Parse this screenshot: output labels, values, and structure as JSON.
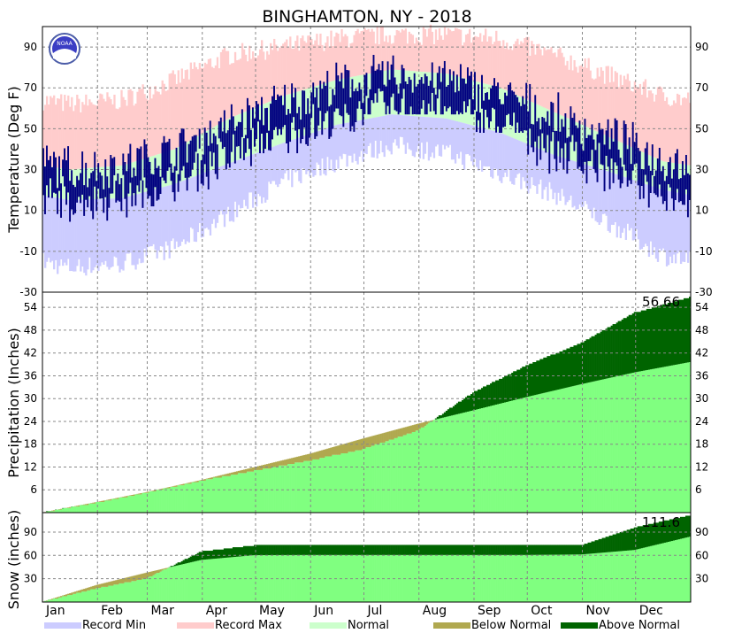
{
  "chart_data": {
    "type": "climate-summary",
    "title": "BINGHAMTON, NY - 2018",
    "months": [
      "Jan",
      "Feb",
      "Mar",
      "Apr",
      "May",
      "Jun",
      "Jul",
      "Aug",
      "Sep",
      "Oct",
      "Nov",
      "Dec"
    ],
    "logo_text": "NOAA",
    "temperature": {
      "ylabel": "Temperature (Deg F)",
      "ylim": [
        -30,
        100
      ],
      "ticks": [
        -30,
        -10,
        10,
        30,
        50,
        70,
        90
      ],
      "normal_high_by_month": [
        30,
        32,
        40,
        55,
        66,
        74,
        79,
        77,
        70,
        58,
        46,
        34
      ],
      "normal_low_by_month": [
        15,
        16,
        23,
        33,
        43,
        52,
        57,
        55,
        48,
        37,
        29,
        20
      ],
      "record_max_by_month": [
        62,
        64,
        74,
        86,
        90,
        94,
        96,
        96,
        94,
        86,
        76,
        66
      ],
      "record_min_by_month": [
        -18,
        -16,
        -8,
        8,
        24,
        34,
        42,
        38,
        28,
        18,
        4,
        -12
      ],
      "observed_monthly_range": [
        {
          "month": "Jan",
          "low": -7,
          "high": 55
        },
        {
          "month": "Feb",
          "low": 5,
          "high": 67
        },
        {
          "month": "Mar",
          "low": 12,
          "high": 50
        },
        {
          "month": "Apr",
          "low": 16,
          "high": 75
        },
        {
          "month": "May",
          "low": 38,
          "high": 88
        },
        {
          "month": "Jun",
          "low": 45,
          "high": 88
        },
        {
          "month": "Jul",
          "low": 57,
          "high": 91
        },
        {
          "month": "Aug",
          "low": 57,
          "high": 87
        },
        {
          "month": "Sep",
          "low": 48,
          "high": 88
        },
        {
          "month": "Oct",
          "low": 28,
          "high": 78
        },
        {
          "month": "Nov",
          "low": 2,
          "high": 60
        },
        {
          "month": "Dec",
          "low": 5,
          "high": 55
        }
      ]
    },
    "precipitation": {
      "ylabel": "Precipitation (Inches)",
      "ylim": [
        0,
        58
      ],
      "ticks": [
        6,
        12,
        18,
        24,
        30,
        36,
        42,
        48,
        54
      ],
      "cumulative_observed_by_month_end": [
        2.6,
        5.2,
        8.4,
        11.0,
        13.7,
        16.7,
        21.6,
        31.6,
        38.7,
        44.7,
        52.6,
        56.66
      ],
      "cumulative_normal_by_month_end": [
        2.8,
        5.4,
        8.6,
        12.0,
        15.5,
        19.5,
        23.4,
        26.9,
        30.4,
        33.8,
        36.9,
        39.6
      ],
      "total_label": "56.66"
    },
    "snow": {
      "ylabel": "Snow (inches)",
      "ylim": [
        0,
        115
      ],
      "ticks": [
        30,
        60,
        90
      ],
      "cumulative_observed_by_month_end": [
        17.5,
        30.2,
        65.0,
        73.0,
        73.0,
        73.0,
        73.0,
        73.0,
        73.0,
        73.2,
        96.0,
        111.6
      ],
      "cumulative_normal_by_month_end": [
        22.0,
        37.8,
        54.2,
        60.3,
        60.5,
        60.5,
        60.5,
        60.5,
        60.5,
        61.2,
        67.0,
        84.0
      ],
      "total_label": "111.6"
    },
    "legend": [
      {
        "label": "Record Min",
        "color": "#ccccff"
      },
      {
        "label": "Record Max",
        "color": "#ffcccc"
      },
      {
        "label": "Normal",
        "color": "#ccffcc"
      },
      {
        "label": "Below Normal",
        "color": "#b0a84f"
      },
      {
        "label": "Above Normal",
        "color": "#006400"
      }
    ],
    "colors": {
      "observed_temperature": "#000080",
      "normal_accumulation": "#80ff80",
      "above_normal": "#006400",
      "below_normal": "#b0a84f"
    }
  }
}
